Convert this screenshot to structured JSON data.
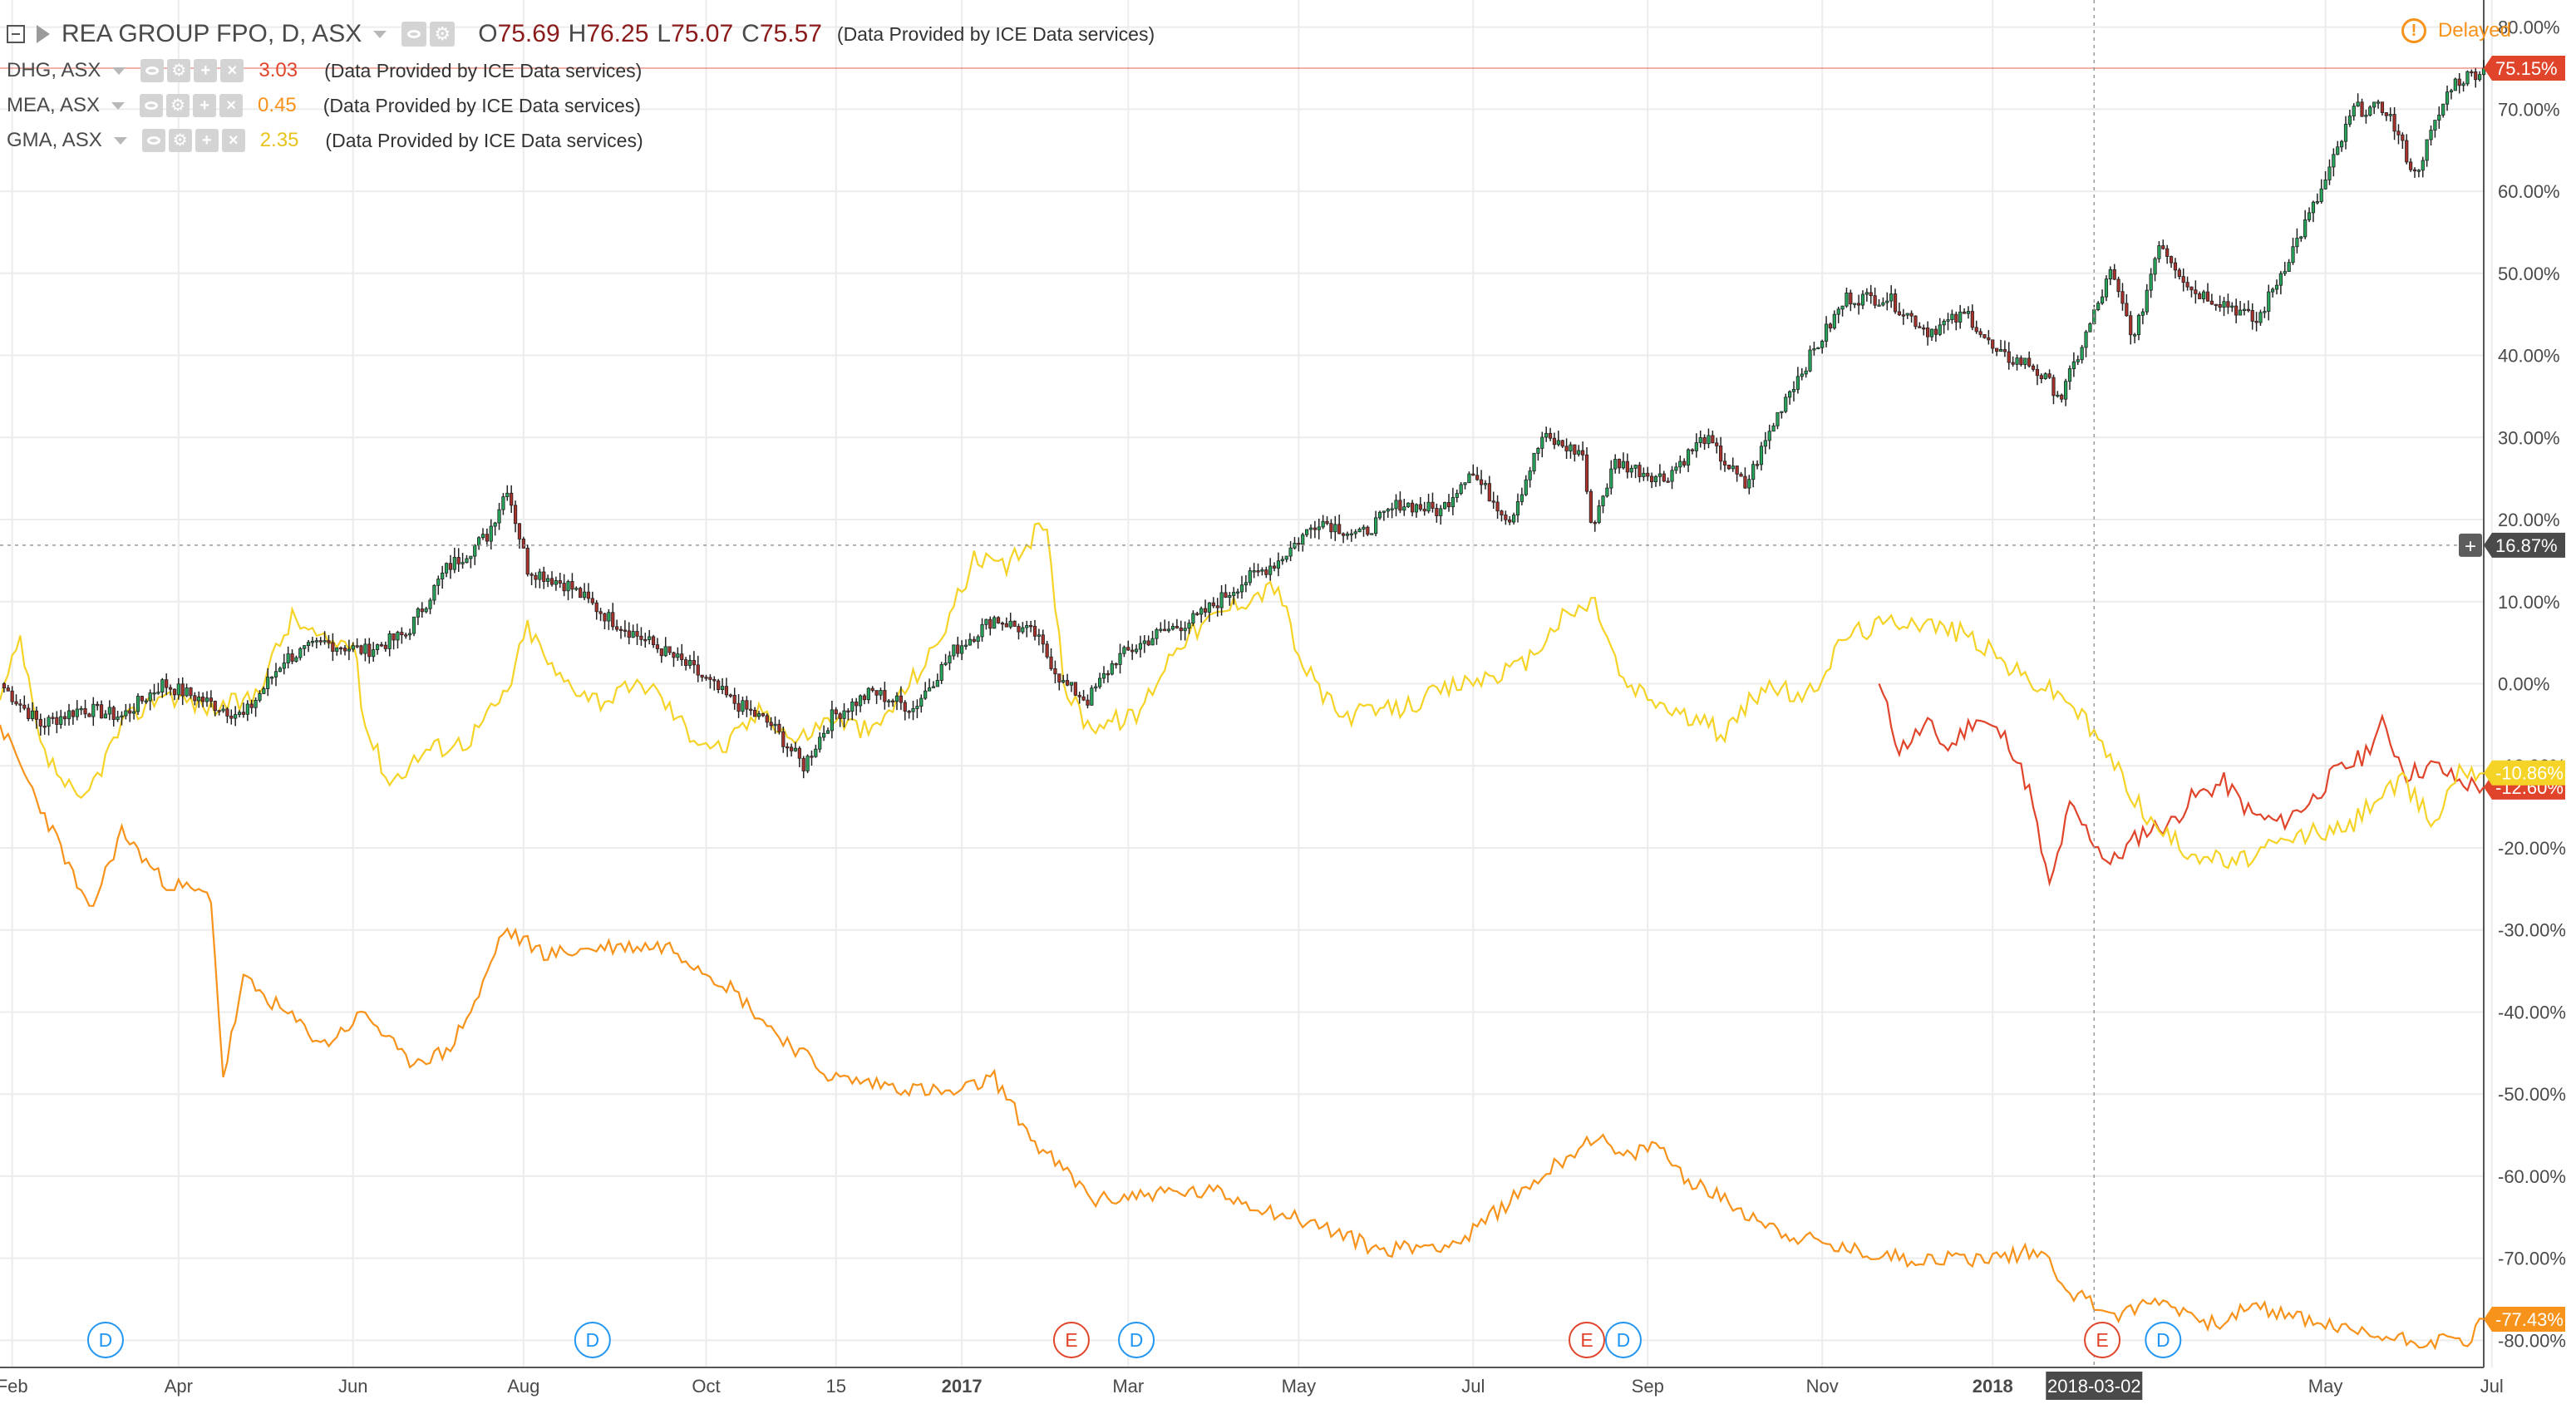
{
  "header": {
    "main": {
      "symbol": "REA GROUP FPO, D, ASX",
      "open_label": "O",
      "open": "75.69",
      "high_label": "H",
      "high": "76.25",
      "low_label": "L",
      "low": "75.07",
      "close_label": "C",
      "close": "75.57",
      "provider": "(Data Provided by ICE Data services)"
    },
    "compare": [
      {
        "symbol": "DHG, ASX",
        "value": "3.03",
        "provider": "(Data Provided by ICE Data services)",
        "color": "#e0452b"
      },
      {
        "symbol": "MEA, ASX",
        "value": "0.45",
        "provider": "(Data Provided by ICE Data services)",
        "color": "#f7931a"
      },
      {
        "symbol": "GMA, ASX",
        "value": "2.35",
        "provider": "(Data Provided by ICE Data services)",
        "color": "#e8c31b"
      }
    ],
    "delayed_label": "Delayed",
    "icons": [
      "collapse-icon",
      "flag-icon",
      "eye-icon",
      "gear-icon",
      "plus-icon",
      "close-icon"
    ]
  },
  "colors": {
    "up": "#26a65b",
    "down": "#a8312b",
    "dhg": "#e0452b",
    "mea": "#f7931a",
    "gma": "#f5d327",
    "rea_badge": "#e0452b",
    "crosshair_badge": "#4a4a4a",
    "grid": "#ececec"
  },
  "crosshair": {
    "price_label": "16.87%",
    "date_label": "2018-03-02",
    "x_index": 516
  },
  "chart_data": {
    "type": "line",
    "x_axis": {
      "start": "2016-01-29",
      "end": "2018-06-29",
      "tick_labels": [
        "Feb",
        "Apr",
        "Jun",
        "Aug",
        "Oct",
        "15",
        "2017",
        "Mar",
        "May",
        "Jul",
        "Sep",
        "Nov",
        "2018",
        "2018-03-02",
        "May",
        "Jul"
      ],
      "tick_positions": [
        3,
        44,
        87,
        129,
        174,
        206,
        237,
        278,
        320,
        363,
        406,
        449,
        491,
        531,
        573,
        614
      ],
      "bold_ticks": [
        "2017",
        "2018"
      ]
    },
    "y_axis": {
      "unit": "%",
      "ylim": [
        -83.3,
        83.3
      ],
      "tick_labels": [
        "80.00%",
        "70.00%",
        "60.00%",
        "50.00%",
        "40.00%",
        "30.00%",
        "20.00%",
        "10.00%",
        "0.00%",
        "-10.00%",
        "-20.00%",
        "-30.00%",
        "-40.00%",
        "-50.00%",
        "-60.00%",
        "-70.00%",
        "-80.00%"
      ],
      "tick_values": [
        80,
        70,
        60,
        50,
        40,
        30,
        20,
        10,
        0,
        -10,
        -20,
        -30,
        -40,
        -50,
        -60,
        -70,
        -80
      ]
    },
    "grid": true,
    "series": [
      {
        "name": "REA GROUP FPO",
        "kind": "candlestick",
        "last_label": "75.15%",
        "anchors": [
          [
            0,
            0
          ],
          [
            10,
            -5
          ],
          [
            20,
            -3
          ],
          [
            30,
            -4
          ],
          [
            40,
            0
          ],
          [
            50,
            -2
          ],
          [
            60,
            -4
          ],
          [
            70,
            3
          ],
          [
            80,
            5
          ],
          [
            90,
            4
          ],
          [
            100,
            6
          ],
          [
            110,
            14
          ],
          [
            120,
            18
          ],
          [
            125,
            24
          ],
          [
            130,
            14
          ],
          [
            140,
            12
          ],
          [
            150,
            8
          ],
          [
            160,
            5
          ],
          [
            170,
            2
          ],
          [
            180,
            -2
          ],
          [
            190,
            -5
          ],
          [
            198,
            -10
          ],
          [
            205,
            -4
          ],
          [
            215,
            -1
          ],
          [
            225,
            -3
          ],
          [
            235,
            4
          ],
          [
            245,
            8
          ],
          [
            255,
            6
          ],
          [
            262,
            0
          ],
          [
            268,
            -2
          ],
          [
            275,
            3
          ],
          [
            285,
            6
          ],
          [
            295,
            8
          ],
          [
            305,
            12
          ],
          [
            315,
            15
          ],
          [
            325,
            20
          ],
          [
            335,
            18
          ],
          [
            345,
            22
          ],
          [
            355,
            21
          ],
          [
            362,
            26
          ],
          [
            372,
            20
          ],
          [
            380,
            30
          ],
          [
            390,
            28
          ],
          [
            392,
            19
          ],
          [
            398,
            27
          ],
          [
            410,
            25
          ],
          [
            420,
            30
          ],
          [
            430,
            24
          ],
          [
            440,
            35
          ],
          [
            455,
            47
          ],
          [
            465,
            47
          ],
          [
            475,
            43
          ],
          [
            485,
            45
          ],
          [
            492,
            40
          ],
          [
            500,
            39
          ],
          [
            508,
            35
          ],
          [
            512,
            40
          ],
          [
            520,
            50
          ],
          [
            526,
            42
          ],
          [
            532,
            54
          ],
          [
            540,
            48
          ],
          [
            550,
            46
          ],
          [
            556,
            44
          ],
          [
            564,
            52
          ],
          [
            572,
            60
          ],
          [
            580,
            70
          ],
          [
            588,
            70
          ],
          [
            595,
            62
          ],
          [
            604,
            73
          ],
          [
            612,
            75
          ]
        ]
      },
      {
        "name": "DHG",
        "kind": "line",
        "last_label": "-12.60%",
        "anchors": [
          [
            463,
            0
          ],
          [
            468,
            -8
          ],
          [
            475,
            -5
          ],
          [
            480,
            -8
          ],
          [
            487,
            -4
          ],
          [
            495,
            -7
          ],
          [
            500,
            -13
          ],
          [
            505,
            -25
          ],
          [
            510,
            -15
          ],
          [
            520,
            -22
          ],
          [
            528,
            -18
          ],
          [
            535,
            -17
          ],
          [
            540,
            -14
          ],
          [
            548,
            -12
          ],
          [
            555,
            -16
          ],
          [
            562,
            -17
          ],
          [
            570,
            -14
          ],
          [
            575,
            -11
          ],
          [
            582,
            -9
          ],
          [
            587,
            -5
          ],
          [
            593,
            -11
          ],
          [
            600,
            -10
          ],
          [
            606,
            -12
          ],
          [
            612,
            -12.6
          ]
        ]
      },
      {
        "name": "MEA",
        "kind": "line",
        "last_label": "-77.43%",
        "anchors": [
          [
            0,
            -5
          ],
          [
            5,
            -10
          ],
          [
            10,
            -15
          ],
          [
            15,
            -20
          ],
          [
            22,
            -28
          ],
          [
            30,
            -18
          ],
          [
            40,
            -24
          ],
          [
            52,
            -26
          ],
          [
            55,
            -48
          ],
          [
            60,
            -36
          ],
          [
            70,
            -40
          ],
          [
            80,
            -44
          ],
          [
            90,
            -40
          ],
          [
            100,
            -46
          ],
          [
            110,
            -45
          ],
          [
            118,
            -38
          ],
          [
            124,
            -30
          ],
          [
            135,
            -33
          ],
          [
            150,
            -32
          ],
          [
            165,
            -32
          ],
          [
            180,
            -37
          ],
          [
            190,
            -42
          ],
          [
            205,
            -48
          ],
          [
            220,
            -49
          ],
          [
            235,
            -50
          ],
          [
            245,
            -48
          ],
          [
            255,
            -56
          ],
          [
            270,
            -63
          ],
          [
            285,
            -62
          ],
          [
            300,
            -62
          ],
          [
            312,
            -64
          ],
          [
            325,
            -66
          ],
          [
            340,
            -69
          ],
          [
            360,
            -68
          ],
          [
            372,
            -63
          ],
          [
            385,
            -58
          ],
          [
            393,
            -55
          ],
          [
            400,
            -58
          ],
          [
            408,
            -56
          ],
          [
            415,
            -60
          ],
          [
            425,
            -63
          ],
          [
            440,
            -67
          ],
          [
            455,
            -69
          ],
          [
            470,
            -70
          ],
          [
            490,
            -70
          ],
          [
            503,
            -69
          ],
          [
            510,
            -74
          ],
          [
            522,
            -77
          ],
          [
            532,
            -75
          ],
          [
            545,
            -78
          ],
          [
            555,
            -76
          ],
          [
            565,
            -77
          ],
          [
            580,
            -79
          ],
          [
            595,
            -80
          ],
          [
            608,
            -80
          ],
          [
            612,
            -77.4
          ]
        ]
      },
      {
        "name": "GMA",
        "kind": "line",
        "last_label": "-10.86%",
        "anchors": [
          [
            0,
            -2
          ],
          [
            5,
            5
          ],
          [
            10,
            -8
          ],
          [
            20,
            -15
          ],
          [
            30,
            -5
          ],
          [
            40,
            -1
          ],
          [
            52,
            -3
          ],
          [
            62,
            -2
          ],
          [
            72,
            8
          ],
          [
            80,
            5
          ],
          [
            87,
            5
          ],
          [
            90,
            -5
          ],
          [
            96,
            -12
          ],
          [
            105,
            -8
          ],
          [
            115,
            -7
          ],
          [
            125,
            -1
          ],
          [
            130,
            7
          ],
          [
            137,
            1
          ],
          [
            148,
            -2
          ],
          [
            160,
            0
          ],
          [
            170,
            -6
          ],
          [
            178,
            -8
          ],
          [
            188,
            -3
          ],
          [
            196,
            -7
          ],
          [
            205,
            -4
          ],
          [
            215,
            -6
          ],
          [
            230,
            4
          ],
          [
            240,
            15
          ],
          [
            248,
            14
          ],
          [
            258,
            20
          ],
          [
            262,
            0
          ],
          [
            268,
            -5
          ],
          [
            280,
            -4
          ],
          [
            290,
            5
          ],
          [
            305,
            10
          ],
          [
            315,
            12
          ],
          [
            320,
            3
          ],
          [
            330,
            -4
          ],
          [
            345,
            -3
          ],
          [
            360,
            0
          ],
          [
            375,
            2
          ],
          [
            385,
            8
          ],
          [
            393,
            10
          ],
          [
            400,
            0
          ],
          [
            415,
            -4
          ],
          [
            425,
            -6
          ],
          [
            435,
            0
          ],
          [
            445,
            -2
          ],
          [
            455,
            6
          ],
          [
            470,
            8
          ],
          [
            485,
            6
          ],
          [
            498,
            1
          ],
          [
            510,
            -2
          ],
          [
            520,
            -9
          ],
          [
            530,
            -17
          ],
          [
            538,
            -20
          ],
          [
            550,
            -22
          ],
          [
            560,
            -20
          ],
          [
            570,
            -18
          ],
          [
            578,
            -18
          ],
          [
            585,
            -14
          ],
          [
            592,
            -12
          ],
          [
            600,
            -17
          ],
          [
            606,
            -10
          ],
          [
            612,
            -10.9
          ]
        ]
      }
    ],
    "event_markers": [
      {
        "letter": "D",
        "pos": 26
      },
      {
        "letter": "D",
        "pos": 146
      },
      {
        "letter": "E",
        "pos": 264
      },
      {
        "letter": "D",
        "pos": 280
      },
      {
        "letter": "E",
        "pos": 391
      },
      {
        "letter": "D",
        "pos": 400
      },
      {
        "letter": "E",
        "pos": 518
      },
      {
        "letter": "D",
        "pos": 533
      }
    ]
  }
}
